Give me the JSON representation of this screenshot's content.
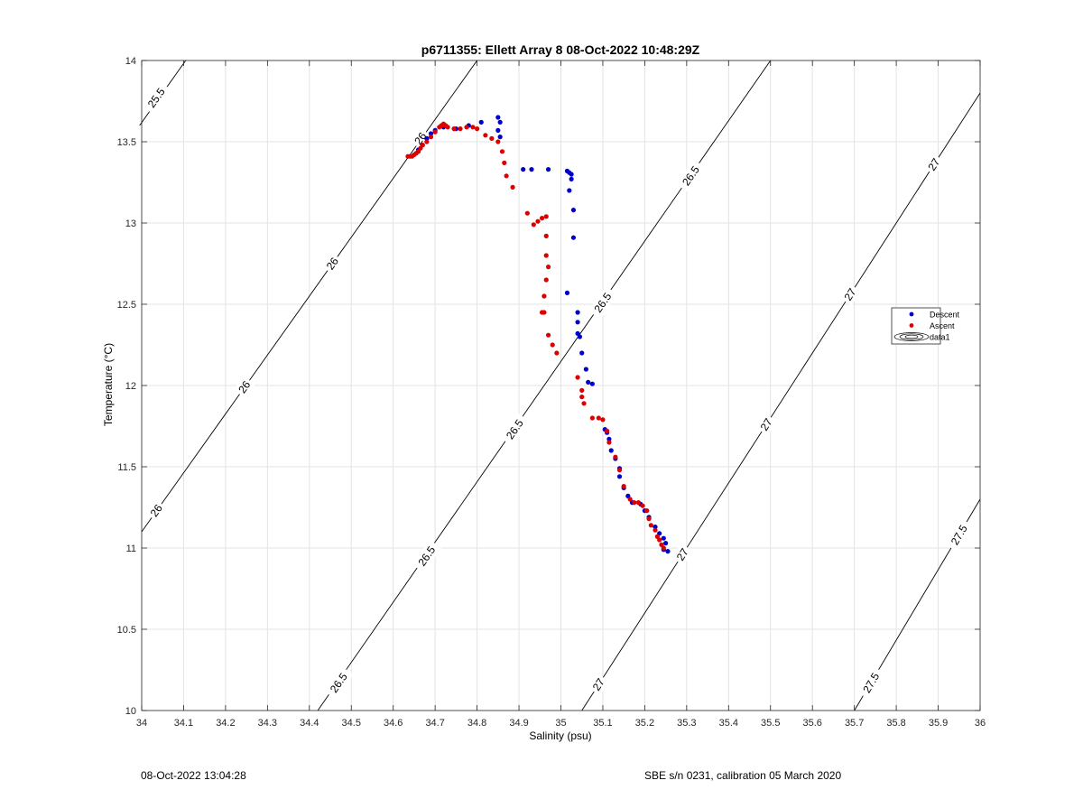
{
  "chart_data": {
    "type": "scatter",
    "title": "p6711355: Ellett Array 8 08-Oct-2022 10:48:29Z",
    "xlabel": "Salinity (psu)",
    "ylabel": "Temperature (°C)",
    "xlim": [
      34,
      36
    ],
    "ylim": [
      10,
      14
    ],
    "xticks": [
      34,
      34.1,
      34.2,
      34.3,
      34.4,
      34.5,
      34.6,
      34.7,
      34.8,
      34.9,
      35,
      35.1,
      35.2,
      35.3,
      35.4,
      35.5,
      35.6,
      35.7,
      35.8,
      35.9,
      36
    ],
    "xtick_labels": [
      "34",
      "34.1",
      "34.2",
      "34.3",
      "34.4",
      "34.5",
      "34.6",
      "34.7",
      "34.8",
      "34.9",
      "35",
      "35.1",
      "35.2",
      "35.3",
      "35.4",
      "35.5",
      "35.6",
      "35.7",
      "35.8",
      "35.9",
      "36"
    ],
    "yticks": [
      10,
      10.5,
      11,
      11.5,
      12,
      12.5,
      13,
      13.5,
      14
    ],
    "ytick_labels": [
      "10",
      "10.5",
      "11",
      "11.5",
      "12",
      "12.5",
      "13",
      "13.5",
      "14"
    ],
    "grid": true,
    "legend_position": "right",
    "legend": [
      "Descent",
      "Ascent",
      "data1"
    ],
    "series": [
      {
        "name": "Descent",
        "color": "#0000cc",
        "points": [
          [
            34.66,
            13.45
          ],
          [
            34.67,
            13.48
          ],
          [
            34.68,
            13.52
          ],
          [
            34.69,
            13.55
          ],
          [
            34.7,
            13.57
          ],
          [
            34.72,
            13.59
          ],
          [
            34.75,
            13.58
          ],
          [
            34.78,
            13.6
          ],
          [
            34.81,
            13.62
          ],
          [
            34.85,
            13.65
          ],
          [
            34.855,
            13.62
          ],
          [
            34.85,
            13.57
          ],
          [
            34.855,
            13.53
          ],
          [
            34.91,
            13.33
          ],
          [
            34.93,
            13.33
          ],
          [
            34.97,
            13.33
          ],
          [
            35.015,
            13.32
          ],
          [
            35.02,
            13.31
          ],
          [
            35.025,
            13.3
          ],
          [
            35.025,
            13.27
          ],
          [
            35.02,
            13.2
          ],
          [
            35.03,
            13.08
          ],
          [
            35.03,
            12.91
          ],
          [
            35.015,
            12.57
          ],
          [
            35.04,
            12.45
          ],
          [
            35.04,
            12.39
          ],
          [
            35.04,
            12.32
          ],
          [
            35.045,
            12.3
          ],
          [
            35.05,
            12.2
          ],
          [
            35.06,
            12.1
          ],
          [
            35.065,
            12.02
          ],
          [
            35.075,
            12.01
          ],
          [
            35.105,
            11.73
          ],
          [
            35.11,
            11.71
          ],
          [
            35.115,
            11.67
          ],
          [
            35.12,
            11.6
          ],
          [
            35.13,
            11.55
          ],
          [
            35.14,
            11.49
          ],
          [
            35.14,
            11.44
          ],
          [
            35.15,
            11.37
          ],
          [
            35.16,
            11.32
          ],
          [
            35.17,
            11.28
          ],
          [
            35.19,
            11.27
          ],
          [
            35.2,
            11.23
          ],
          [
            35.21,
            11.19
          ],
          [
            35.225,
            11.13
          ],
          [
            35.235,
            11.09
          ],
          [
            35.245,
            11.06
          ],
          [
            35.25,
            11.03
          ],
          [
            35.245,
            10.99
          ],
          [
            35.255,
            10.98
          ]
        ]
      },
      {
        "name": "Ascent",
        "color": "#dd0000",
        "points": [
          [
            34.635,
            13.41
          ],
          [
            34.64,
            13.41
          ],
          [
            34.645,
            13.41
          ],
          [
            34.65,
            13.42
          ],
          [
            34.655,
            13.43
          ],
          [
            34.66,
            13.44
          ],
          [
            34.665,
            13.46
          ],
          [
            34.67,
            13.48
          ],
          [
            34.68,
            13.5
          ],
          [
            34.69,
            13.53
          ],
          [
            34.7,
            13.56
          ],
          [
            34.71,
            13.59
          ],
          [
            34.715,
            13.6
          ],
          [
            34.72,
            13.61
          ],
          [
            34.725,
            13.6
          ],
          [
            34.73,
            13.59
          ],
          [
            34.745,
            13.58
          ],
          [
            34.76,
            13.58
          ],
          [
            34.775,
            13.59
          ],
          [
            34.79,
            13.59
          ],
          [
            34.8,
            13.58
          ],
          [
            34.82,
            13.54
          ],
          [
            34.835,
            13.52
          ],
          [
            34.85,
            13.5
          ],
          [
            34.86,
            13.44
          ],
          [
            34.865,
            13.37
          ],
          [
            34.87,
            13.29
          ],
          [
            34.885,
            13.22
          ],
          [
            34.92,
            13.06
          ],
          [
            34.935,
            12.99
          ],
          [
            34.945,
            13.01
          ],
          [
            34.955,
            13.03
          ],
          [
            34.965,
            13.04
          ],
          [
            34.965,
            12.92
          ],
          [
            34.965,
            12.8
          ],
          [
            34.97,
            12.73
          ],
          [
            34.965,
            12.65
          ],
          [
            34.96,
            12.55
          ],
          [
            34.96,
            12.45
          ],
          [
            34.955,
            12.45
          ],
          [
            34.97,
            12.31
          ],
          [
            34.98,
            12.25
          ],
          [
            34.99,
            12.2
          ],
          [
            35.04,
            12.05
          ],
          [
            35.05,
            11.97
          ],
          [
            35.05,
            11.93
          ],
          [
            35.055,
            11.89
          ],
          [
            35.075,
            11.8
          ],
          [
            35.09,
            11.8
          ],
          [
            35.1,
            11.79
          ],
          [
            35.11,
            11.72
          ],
          [
            35.115,
            11.65
          ],
          [
            35.13,
            11.56
          ],
          [
            35.14,
            11.48
          ],
          [
            35.15,
            11.38
          ],
          [
            35.165,
            11.3
          ],
          [
            35.175,
            11.28
          ],
          [
            35.185,
            11.28
          ],
          [
            35.195,
            11.26
          ],
          [
            35.205,
            11.23
          ],
          [
            35.21,
            11.18
          ],
          [
            35.215,
            11.14
          ],
          [
            35.225,
            11.11
          ],
          [
            35.23,
            11.07
          ],
          [
            35.235,
            11.05
          ],
          [
            35.24,
            11.02
          ],
          [
            35.245,
            11.0
          ]
        ]
      }
    ],
    "isopycnals": [
      {
        "value": 25.5,
        "line": [
          [
            33.995,
            13.6
          ],
          [
            34.105,
            14
          ]
        ],
        "labels": [
          {
            "text": "25.5",
            "at": [
              34.035,
              13.77
            ]
          }
        ]
      },
      {
        "value": 26,
        "line": [
          [
            34.0,
            11.1
          ],
          [
            34.8,
            14
          ]
        ],
        "labels": [
          {
            "text": "26",
            "at": [
              34.035,
              11.23
            ]
          },
          {
            "text": "26",
            "at": [
              34.245,
              11.99
            ]
          },
          {
            "text": "26",
            "at": [
              34.455,
              12.75
            ]
          },
          {
            "text": "26",
            "at": [
              34.665,
              13.52
            ]
          }
        ]
      },
      {
        "value": 26.5,
        "line": [
          [
            34.42,
            10.0
          ],
          [
            35.5,
            14
          ]
        ],
        "labels": [
          {
            "text": "26.5",
            "at": [
              34.47,
              10.17
            ]
          },
          {
            "text": "26.5",
            "at": [
              34.68,
              10.95
            ]
          },
          {
            "text": "26.5",
            "at": [
              34.89,
              11.73
            ]
          },
          {
            "text": "26.5",
            "at": [
              35.1,
              12.51
            ]
          },
          {
            "text": "26.5",
            "at": [
              35.31,
              13.29
            ]
          }
        ]
      },
      {
        "value": 27,
        "line": [
          [
            35.05,
            10.0
          ],
          [
            36.0,
            13.8
          ]
        ],
        "labels": [
          {
            "text": "27",
            "at": [
              35.09,
              10.16
            ]
          },
          {
            "text": "27",
            "at": [
              35.29,
              10.96
            ]
          },
          {
            "text": "27",
            "at": [
              35.49,
              11.76
            ]
          },
          {
            "text": "27",
            "at": [
              35.69,
              12.56
            ]
          },
          {
            "text": "27",
            "at": [
              35.89,
              13.36
            ]
          }
        ]
      },
      {
        "value": 27.5,
        "line": [
          [
            35.7,
            10.0
          ],
          [
            36.0,
            11.3
          ]
        ],
        "labels": [
          {
            "text": "27.5",
            "at": [
              35.74,
              10.17
            ]
          },
          {
            "text": "27.5",
            "at": [
              35.95,
              11.08
            ]
          }
        ]
      }
    ]
  },
  "footer": {
    "left": "08-Oct-2022 13:04:28",
    "right": "SBE s/n 0231, calibration 05 March 2020"
  }
}
